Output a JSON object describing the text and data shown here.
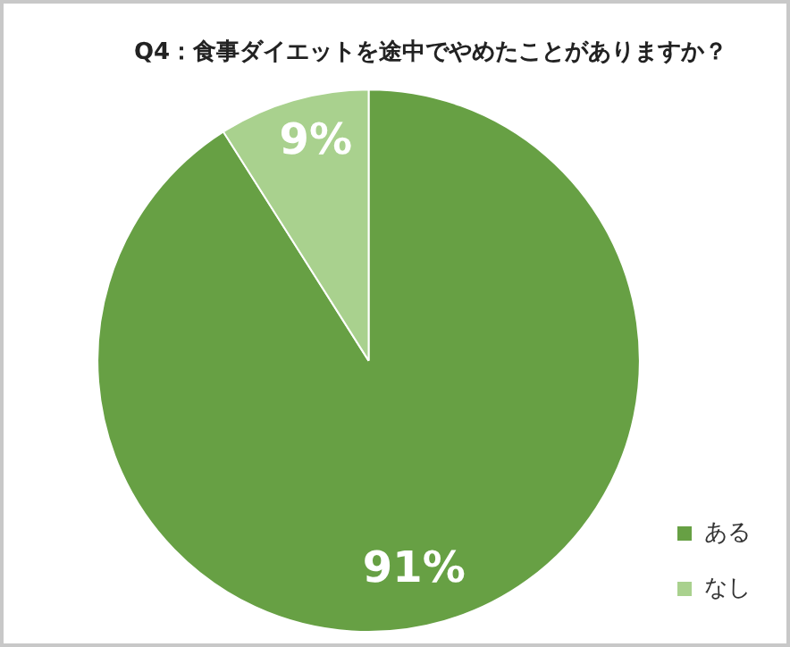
{
  "chart_data": {
    "type": "pie",
    "title": "Q4：食事ダイエットを途中でやめたことがありますか？",
    "categories": [
      "ある",
      "なし"
    ],
    "values": [
      91,
      9
    ],
    "colors": [
      "#67a044",
      "#a9d18e"
    ],
    "value_labels": [
      "91%",
      "9%"
    ],
    "legend": "bottom right"
  }
}
